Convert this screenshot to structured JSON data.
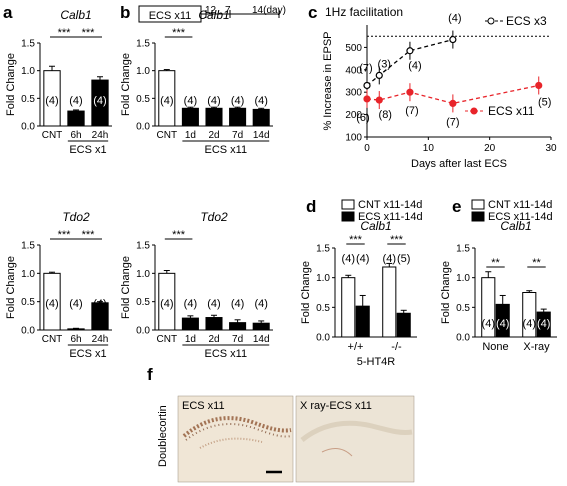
{
  "chart_data": [
    {
      "panel": "a",
      "type": "bar",
      "title": "Calb1",
      "ylabel": "Fold Change",
      "ylim": [
        0,
        1.5
      ],
      "yticks": [
        "0.0",
        "0.5",
        "1.0",
        "1.5"
      ],
      "categories": [
        "CNT",
        "6h",
        "24h"
      ],
      "values": [
        1.0,
        0.27,
        0.83
      ],
      "errors": [
        0.08,
        0.02,
        0.06
      ],
      "fills": [
        "#ffffff",
        "#000000",
        "#000000"
      ],
      "n_labels": [
        "(4)",
        "(4)",
        "(4)"
      ],
      "sig": [
        {
          "from": 0,
          "to": 1,
          "text": "***"
        },
        {
          "from": 1,
          "to": 2,
          "text": "***"
        }
      ],
      "group_label": "ECS x1"
    },
    {
      "panel": "a",
      "type": "bar",
      "title": "Tdo2",
      "ylabel": "Fold Change",
      "ylim": [
        0,
        1.5
      ],
      "yticks": [
        "0.0",
        "0.5",
        "1.0",
        "1.5"
      ],
      "categories": [
        "CNT",
        "6h",
        "24h"
      ],
      "values": [
        1.0,
        0.02,
        0.48
      ],
      "errors": [
        0.02,
        0.01,
        0.02
      ],
      "fills": [
        "#ffffff",
        "#000000",
        "#000000"
      ],
      "n_labels": [
        "(4)",
        "(4)",
        "(4)"
      ],
      "sig": [
        {
          "from": 0,
          "to": 1,
          "text": "***"
        },
        {
          "from": 1,
          "to": 2,
          "text": "***"
        }
      ],
      "group_label": "ECS x1"
    },
    {
      "panel": "b",
      "type": "bar",
      "title": "Calb1",
      "ylabel": "Fold Change",
      "ylim": [
        0,
        1.5
      ],
      "yticks": [
        "0.0",
        "0.5",
        "1.0",
        "1.5"
      ],
      "categories": [
        "CNT",
        "1d",
        "2d",
        "7d",
        "14d"
      ],
      "values": [
        1.0,
        0.32,
        0.32,
        0.32,
        0.3
      ],
      "errors": [
        0.02,
        0.02,
        0.02,
        0.02,
        0.02
      ],
      "fills": [
        "#ffffff",
        "#000000",
        "#000000",
        "#000000",
        "#000000"
      ],
      "n_labels": [
        "(4)",
        "(4)",
        "(4)",
        "(4)",
        "(4)"
      ],
      "sig": [
        {
          "from": 0,
          "to": 1,
          "text": "***"
        }
      ],
      "group_label": "ECS x11"
    },
    {
      "panel": "b",
      "type": "bar",
      "title": "Tdo2",
      "ylabel": "Fold Change",
      "ylim": [
        0,
        1.5
      ],
      "yticks": [
        "0.0",
        "0.5",
        "1.0",
        "1.5"
      ],
      "categories": [
        "CNT",
        "1d",
        "2d",
        "7d",
        "14d"
      ],
      "values": [
        1.0,
        0.21,
        0.22,
        0.13,
        0.12
      ],
      "errors": [
        0.05,
        0.04,
        0.04,
        0.05,
        0.04
      ],
      "fills": [
        "#ffffff",
        "#000000",
        "#000000",
        "#000000",
        "#000000"
      ],
      "n_labels": [
        "(4)",
        "(4)",
        "(4)",
        "(4)",
        "(4)"
      ],
      "sig": [
        {
          "from": 0,
          "to": 1,
          "text": "***"
        }
      ],
      "group_label": "ECS x11"
    },
    {
      "panel": "c",
      "type": "line",
      "title": "1Hz facilitation",
      "xlabel": "Days after last ECS",
      "ylabel": "% Increase in EPSP",
      "xlim": [
        0,
        30
      ],
      "ylim": [
        100,
        600
      ],
      "xticks": [
        "0",
        "10",
        "20",
        "30"
      ],
      "yticks": [
        "100",
        "200",
        "300",
        "400",
        "500"
      ],
      "reference_line": 550,
      "series": [
        {
          "name": "ECS x3",
          "color": "#000000",
          "marker": "open-circle",
          "points": [
            {
              "x": 0,
              "y": 330
            },
            {
              "x": 2,
              "y": 375
            },
            {
              "x": 7,
              "y": 485
            },
            {
              "x": 14,
              "y": 535
            }
          ],
          "n_labels": [
            "(7)",
            "(3)",
            "(4)",
            "(4)"
          ]
        },
        {
          "name": "ECS x11",
          "color": "#e8242a",
          "marker": "filled-circle",
          "points": [
            {
              "x": 0,
              "y": 270
            },
            {
              "x": 2,
              "y": 265
            },
            {
              "x": 7,
              "y": 300
            },
            {
              "x": 14,
              "y": 250
            },
            {
              "x": 28,
              "y": 330
            }
          ],
          "n_labels": [
            "(6)",
            "(8)",
            "(7)",
            "(7)",
            "(5)"
          ]
        }
      ]
    },
    {
      "panel": "d",
      "type": "bar",
      "title": "Calb1",
      "ylabel": "Fold Change",
      "ylim": [
        0,
        1.5
      ],
      "yticks": [
        "0.0",
        "0.5",
        "1.0",
        "1.5"
      ],
      "legend": [
        "CNT x11-14d",
        "ECS x11-14d"
      ],
      "groups": [
        "+/+",
        "-/-"
      ],
      "group_axis_label": "5-HT4R",
      "values": [
        [
          1.0,
          0.52
        ],
        [
          1.18,
          0.4
        ]
      ],
      "errors": [
        [
          0.04,
          0.18
        ],
        [
          0.06,
          0.05
        ]
      ],
      "n_labels": [
        [
          "(4)",
          "(4)"
        ],
        [
          "(4)",
          "(5)"
        ]
      ],
      "sig": [
        "***",
        "***"
      ]
    },
    {
      "panel": "e",
      "type": "bar",
      "title": "Calb1",
      "ylabel": "Fold Change",
      "ylim": [
        0,
        1.5
      ],
      "yticks": [
        "0.0",
        "0.5",
        "1.0",
        "1.5"
      ],
      "legend": [
        "CNT x11-14d",
        "ECS x11-14d"
      ],
      "groups": [
        "None",
        "X-ray"
      ],
      "values": [
        [
          1.0,
          0.55
        ],
        [
          0.75,
          0.42
        ]
      ],
      "errors": [
        [
          0.1,
          0.15
        ],
        [
          0.03,
          0.05
        ]
      ],
      "n_labels": [
        [
          "(4)",
          "(4)"
        ],
        [
          "(4)",
          "(4)"
        ]
      ],
      "sig": [
        "**",
        "**"
      ]
    }
  ],
  "panel_labels": {
    "a": "a",
    "b": "b",
    "c": "c",
    "d": "d",
    "e": "e",
    "f": "f"
  },
  "timeline": {
    "box_label": "ECS x11",
    "ticks": [
      "12",
      "7",
      "14(day)"
    ]
  },
  "panel_f": {
    "ylabel": "Doublecortin",
    "left_label": "ECS x11",
    "right_label": "X ray-ECS x11"
  },
  "colors": {
    "ecs_x3": "#000000",
    "ecs_x11": "#e8242a",
    "tissue_bg": "#f0e6d6",
    "stain": "#8a4d2a"
  }
}
